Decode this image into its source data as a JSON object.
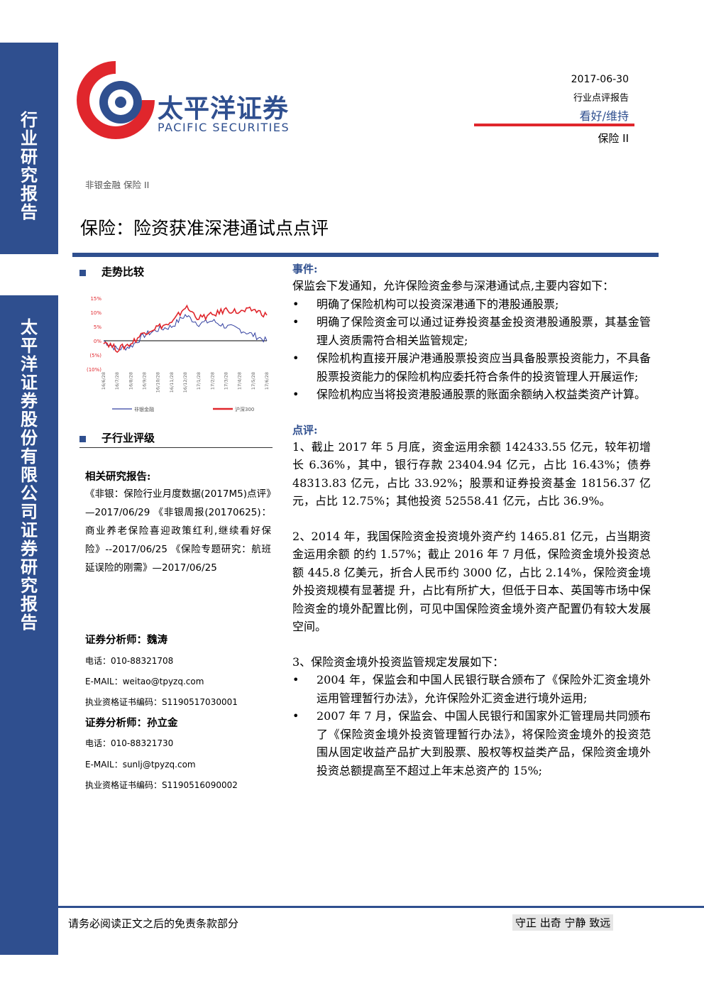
{
  "sidebar": {
    "top_label": "行业研究报告",
    "bottom_label": "太平洋证券股份有限公司证券研究报告"
  },
  "header": {
    "logo_cn": "太平洋证券",
    "logo_en": "PACIFIC SECURITIES",
    "date": "2017-06-30",
    "report_type": "行业点评报告",
    "rating": "看好/维持",
    "sector": "保险 II",
    "breadcrumb": "非银金融 保险 II",
    "title": "保险：险资获准深港通试点点评"
  },
  "colors": {
    "brand_blue": "#2f4f8f",
    "brand_red": "#e0262c"
  },
  "left": {
    "trend_heading": "走势比较",
    "sub_industry_heading": "子行业评级",
    "related_heading": "相关研究报告:",
    "related_text": "《非银：保险行业月度数据(2017M5)点评》—2017/06/29 《非银周报(20170625)：商业养老保险喜迎政策红利,继续看好保险》--2017/06/25 《保险专题研究：航班延误险的刚需》—2017/06/25",
    "analyst1_label": "证券分析师：魏涛",
    "analyst1_phone": "电话：010-88321708",
    "analyst1_email": "E-MAIL：weitao@tpyzq.com",
    "analyst1_cert": "执业资格证书编码：S1190517030001",
    "analyst2_label": "证券分析师：孙立金",
    "analyst2_phone": "电话：010-88321730",
    "analyst2_email": "E-MAIL：sunlj@tpyzq.com",
    "analyst2_cert": "执业资格证书编码：S1190516090002"
  },
  "chart_data": {
    "type": "line",
    "x": [
      "16/6/28",
      "16/7/28",
      "16/8/28",
      "16/9/28",
      "16/10/28",
      "16/11/28",
      "16/12/28",
      "17/1/28",
      "17/2/28",
      "17/3/28",
      "17/4/28",
      "17/5/28",
      "17/6/28"
    ],
    "ytick_labels": [
      "15%",
      "10%",
      "5%",
      "0%",
      "(5%)",
      "(10%)"
    ],
    "ylim": [
      -10,
      15
    ],
    "series": [
      {
        "name": "非银金融",
        "color": "#3340a0",
        "values": [
          0,
          -3,
          -2,
          2,
          4,
          5,
          9,
          6,
          7,
          5,
          4,
          2,
          0
        ]
      },
      {
        "name": "沪深300",
        "color": "#e0262c",
        "values": [
          0,
          -3,
          -1,
          3,
          5,
          6,
          12,
          8,
          9,
          11,
          10,
          11,
          9
        ]
      }
    ]
  },
  "right": {
    "event_heading": "事件:",
    "event_intro": "保监会下发通知，允许保险资金参与深港通试点,主要内容如下：",
    "event_bullets": [
      "明确了保险机构可以投资深港通下的港股通股票;",
      "明确了保险资金可以通过证券投资基金投资港股通股票，其基金管理人资质需符合相关监管规定;",
      "保险机构直接开展沪港通股票投资应当具备股票投资能力，不具备股票投资能力的保险机构应委托符合条件的投资管理人开展运作;",
      "保险机构应当将投资港股通股票的账面余额纳入权益类资产计算。"
    ],
    "comment_heading": "点评:",
    "para1": "1、截止 2017 年 5 月底，资金运用余额 142433.55 亿元，较年初增长 6.36%，其中，银行存款 23404.94 亿元，占比 16.43%；债券 48313.83 亿元，占比 33.92%；股票和证券投资基金 18156.37 亿元，占比 12.75%；其他投资 52558.41 亿元，占比 36.9%。",
    "para2": "2、2014 年，我国保险资金投资境外资产约 1465.81 亿元，占当期资金运用余额 的约 1.57%；截止 2016 年 7 月低，保险资金境外投资总额 445.8 亿美元，折合人民币约 3000 亿，占比 2.14%，保险资金境外投资规模有显著提 升，占比有所扩大，但低于日本、英国等市场中保险资金的境外配置比例，可见中国保险资金境外资产配置仍有较大发展空间。",
    "para3_intro": "3、保险资金境外投资监管规定发展如下：",
    "reg_bullets": [
      "2004 年，保监会和中国人民银行联合颁布了《保险外汇资金境外运用管理暂行办法》，允许保险外汇资金进行境外运用;",
      "2007 年 7 月，保监会、中国人民银行和国家外汇管理局共同颁布了《保险资金境外投资管理暂行办法》，将保险资金境外的投资范围从固定收益产品扩大到股票、股权等权益类产品，保险资金境外投资总额提高至不超过上年末总资产的 15%;"
    ]
  },
  "footer": {
    "disclaimer": "请务必阅读正文之后的免责条款部分",
    "motto": "守正 出奇 宁静 致远"
  }
}
